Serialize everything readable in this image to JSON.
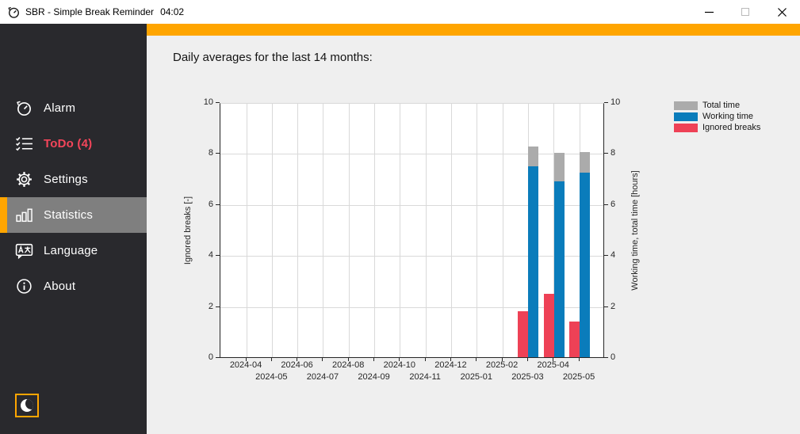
{
  "window": {
    "app_title": "SBR - Simple Break Reminder",
    "clock": "04:02",
    "controls": [
      {
        "id": "minimize",
        "icon": "minimize-icon"
      },
      {
        "id": "maximize",
        "icon": "maximize-icon"
      },
      {
        "id": "close",
        "icon": "close-icon"
      }
    ]
  },
  "accent_color": "#FFA500",
  "sidebar": {
    "items": [
      {
        "id": "alarm",
        "label": "Alarm",
        "icon": "timer-icon",
        "selected": false,
        "label_color": "#ffffff",
        "bold": false
      },
      {
        "id": "todo",
        "label": "ToDo (4)",
        "icon": "checklist-icon",
        "selected": false,
        "label_color": "#f4455a",
        "bold": true
      },
      {
        "id": "settings",
        "label": "Settings",
        "icon": "gear-icon",
        "selected": false,
        "label_color": "#ffffff",
        "bold": false
      },
      {
        "id": "statistics",
        "label": "Statistics",
        "icon": "bar-chart-icon",
        "selected": true,
        "label_color": "#ffffff",
        "bold": false
      },
      {
        "id": "language",
        "label": "Language",
        "icon": "translate-icon",
        "selected": false,
        "label_color": "#ffffff",
        "bold": false
      },
      {
        "id": "about",
        "label": "About",
        "icon": "info-icon",
        "selected": false,
        "label_color": "#ffffff",
        "bold": false
      }
    ],
    "night_mode_button": {
      "icon": "moon-icon"
    }
  },
  "main": {
    "heading": "Daily averages for the last 14 months:"
  },
  "chart_data": {
    "type": "bar",
    "title": "Daily averages for the last 14 months:",
    "categories": [
      "2024-04",
      "2024-05",
      "2024-06",
      "2024-07",
      "2024-08",
      "2024-09",
      "2024-10",
      "2024-11",
      "2024-12",
      "2025-01",
      "2025-02",
      "2025-03",
      "2025-04",
      "2025-05"
    ],
    "series": [
      {
        "name": "Total time",
        "color": "#ababab",
        "axis": "right",
        "values": [
          0,
          0,
          0,
          0,
          0,
          0,
          0,
          0,
          0,
          0,
          0,
          8.25,
          8.0,
          8.05
        ]
      },
      {
        "name": "Working time",
        "color": "#0a7cbb",
        "axis": "right",
        "values": [
          0,
          0,
          0,
          0,
          0,
          0,
          0,
          0,
          0,
          0,
          0,
          7.5,
          6.9,
          7.25
        ]
      },
      {
        "name": "Ignored breaks",
        "color": "#ee4156",
        "axis": "left",
        "values": [
          0,
          0,
          0,
          0,
          0,
          0,
          0,
          0,
          0,
          0,
          0,
          1.8,
          2.5,
          1.4
        ]
      }
    ],
    "left_axis": {
      "label": "Ignored breaks [-]",
      "min": 0,
      "max": 10,
      "ticks": [
        0,
        2,
        4,
        6,
        8,
        10
      ]
    },
    "right_axis": {
      "label": "Working time, total time [hours]",
      "min": 0,
      "max": 10,
      "ticks": [
        0,
        2,
        4,
        6,
        8,
        10
      ]
    },
    "legend": [
      {
        "label": "Total time",
        "color": "#ababab"
      },
      {
        "label": "Working time",
        "color": "#0a7cbb"
      },
      {
        "label": "Ignored breaks",
        "color": "#ee4156"
      }
    ],
    "legend_position": "right-top",
    "grid": true,
    "note": "Total time rendered as gray cap stacked above Working time; Ignored breaks as separate red bar left of each month tick."
  }
}
